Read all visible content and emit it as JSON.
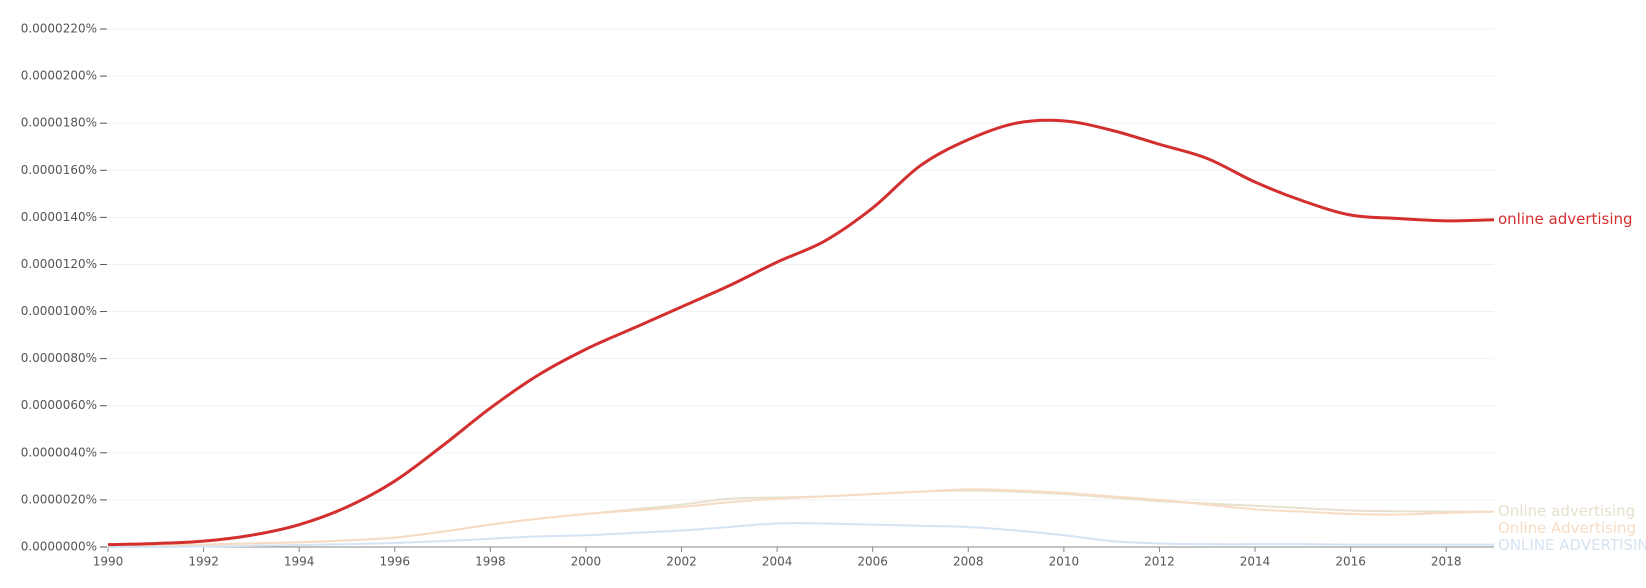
{
  "chart_data": {
    "type": "line",
    "x": [
      1990,
      1991,
      1992,
      1993,
      1994,
      1995,
      1996,
      1997,
      1998,
      1999,
      2000,
      2001,
      2002,
      2003,
      2004,
      2005,
      2006,
      2007,
      2008,
      2009,
      2010,
      2011,
      2012,
      2013,
      2014,
      2015,
      2016,
      2017,
      2018,
      2019
    ],
    "xlim": [
      1990,
      2019
    ],
    "xticks": [
      1990,
      1992,
      1994,
      1996,
      1998,
      2000,
      2002,
      2004,
      2006,
      2008,
      2010,
      2012,
      2014,
      2016,
      2018
    ],
    "ylim": [
      0,
      2.2e-05
    ],
    "yticks": [
      {
        "value": 0,
        "label": "0.0000000%"
      },
      {
        "value": 2e-06,
        "label": "0.0000020%"
      },
      {
        "value": 4e-06,
        "label": "0.0000040%"
      },
      {
        "value": 6e-06,
        "label": "0.0000060%"
      },
      {
        "value": 8e-06,
        "label": "0.0000080%"
      },
      {
        "value": 1e-05,
        "label": "0.0000100%"
      },
      {
        "value": 1.2e-05,
        "label": "0.0000120%"
      },
      {
        "value": 1.4e-05,
        "label": "0.0000140%"
      },
      {
        "value": 1.6e-05,
        "label": "0.0000160%"
      },
      {
        "value": 1.8e-05,
        "label": "0.0000180%"
      },
      {
        "value": 2e-05,
        "label": "0.0000200%"
      },
      {
        "value": 2.2e-05,
        "label": "0.0000220%"
      }
    ],
    "grid": true,
    "series": [
      {
        "name": "Online advertising",
        "color": "#e6e0cc",
        "values": [
          5e-08,
          7e-08,
          1e-07,
          1.5e-07,
          2e-07,
          2.8e-07,
          4e-07,
          6.5e-07,
          9.5e-07,
          1.2e-06,
          1.4e-06,
          1.6e-06,
          1.8e-06,
          2.05e-06,
          2.1e-06,
          2.15e-06,
          2.25e-06,
          2.35e-06,
          2.4e-06,
          2.35e-06,
          2.25e-06,
          2.1e-06,
          1.95e-06,
          1.85e-06,
          1.75e-06,
          1.65e-06,
          1.55e-06,
          1.52e-06,
          1.5e-06,
          1.5e-06
        ]
      },
      {
        "name": "Online Advertising",
        "color": "#f7dcc4",
        "values": [
          5e-08,
          7e-08,
          1e-07,
          1.5e-07,
          2e-07,
          2.8e-07,
          4e-07,
          6.5e-07,
          9.5e-07,
          1.2e-06,
          1.4e-06,
          1.55e-06,
          1.7e-06,
          1.9e-06,
          2.05e-06,
          2.15e-06,
          2.25e-06,
          2.35e-06,
          2.45e-06,
          2.4e-06,
          2.3e-06,
          2.15e-06,
          2e-06,
          1.8e-06,
          1.6e-06,
          1.5e-06,
          1.4e-06,
          1.38e-06,
          1.45e-06,
          1.5e-06
        ]
      },
      {
        "name": "ONLINE ADVERTISING",
        "color": "#d5e3f3",
        "values": [
          0,
          0,
          2e-08,
          5e-08,
          8e-08,
          1.2e-07,
          1.7e-07,
          2.5e-07,
          3.5e-07,
          4.5e-07,
          5e-07,
          6e-07,
          7e-07,
          8.5e-07,
          1e-06,
          1e-06,
          9.5e-07,
          9e-07,
          8.5e-07,
          7e-07,
          5e-07,
          2.5e-07,
          1.5e-07,
          1.2e-07,
          1.2e-07,
          1.2e-07,
          1e-07,
          1e-07,
          1e-07,
          1e-07
        ]
      },
      {
        "name": "online advertising",
        "color": "#d32f2f",
        "values": [
          1e-07,
          1.5e-07,
          2.5e-07,
          5e-07,
          9.5e-07,
          1.7e-06,
          2.8e-06,
          4.3e-06,
          5.9e-06,
          7.3e-06,
          8.4e-06,
          9.3e-06,
          1.02e-05,
          1.11e-05,
          1.21e-05,
          1.3e-05,
          1.44e-05,
          1.62e-05,
          1.73e-05,
          1.8e-05,
          1.81e-05,
          1.77e-05,
          1.71e-05,
          1.65e-05,
          1.55e-05,
          1.47e-05,
          1.41e-05,
          1.395e-05,
          1.385e-05,
          1.39e-05
        ]
      }
    ]
  }
}
